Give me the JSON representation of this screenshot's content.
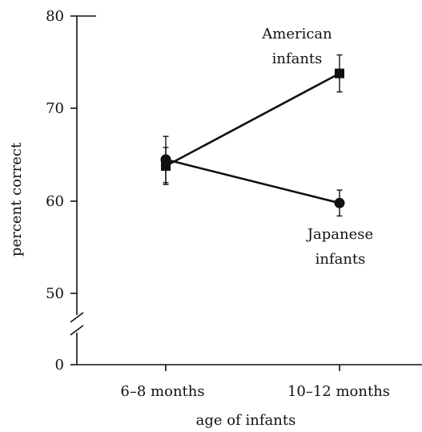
{
  "chart_data": {
    "type": "line",
    "title": "",
    "xlabel": "age of infants",
    "ylabel": "percent correct",
    "categories": [
      "6–8 months",
      "10–12 months"
    ],
    "yticks": [
      "80",
      "70",
      "60",
      "50",
      "0"
    ],
    "ylim": [
      50,
      80
    ],
    "axis_break": true,
    "grid": false,
    "legend": "none",
    "series": [
      {
        "name": "American infants",
        "label_lines": [
          "American",
          "infants"
        ],
        "marker": "square",
        "values": [
          63.8,
          73.8
        ],
        "errors": [
          2,
          2
        ]
      },
      {
        "name": "Japanese infants",
        "label_lines": [
          "Japanese",
          "infants"
        ],
        "marker": "circle",
        "values": [
          64.5,
          59.8
        ],
        "errors": [
          2.5,
          1.4
        ]
      }
    ],
    "colors": {
      "line": "#111111",
      "axis": "#111111",
      "background": "#ffffff"
    }
  }
}
